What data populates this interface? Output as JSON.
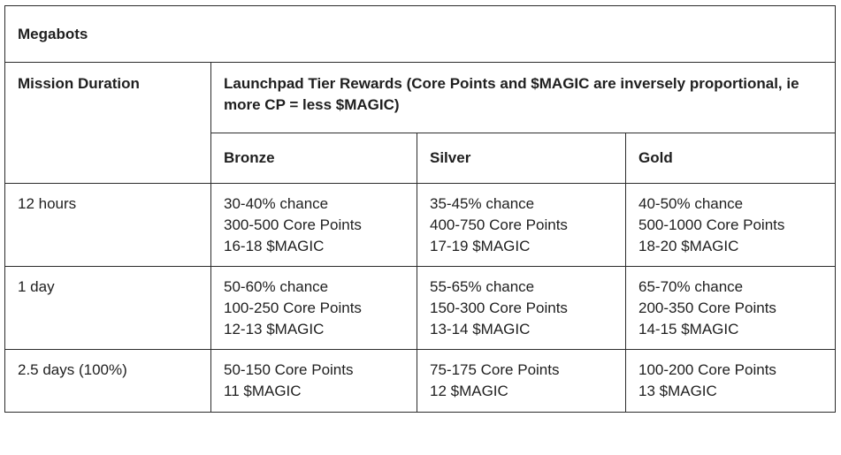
{
  "table": {
    "title": "Megabots",
    "headers": {
      "duration": "Mission Duration",
      "rewards": "Launchpad Tier Rewards (Core Points and $MAGIC are inversely proportional, ie more CP = less $MAGIC)",
      "tiers": [
        "Bronze",
        "Silver",
        "Gold"
      ]
    },
    "rows": [
      {
        "duration": "12 hours",
        "cells": [
          [
            "30-40% chance",
            "300-500 Core Points",
            "16-18 $MAGIC"
          ],
          [
            "35-45% chance",
            "400-750 Core Points",
            "17-19 $MAGIC"
          ],
          [
            "40-50% chance",
            "500-1000 Core Points",
            "18-20 $MAGIC"
          ]
        ]
      },
      {
        "duration": "1 day",
        "cells": [
          [
            "50-60% chance",
            "100-250 Core Points",
            "12-13 $MAGIC"
          ],
          [
            "55-65% chance",
            "150-300 Core Points",
            "13-14 $MAGIC"
          ],
          [
            "65-70% chance",
            "200-350 Core Points",
            "14-15 $MAGIC"
          ]
        ]
      },
      {
        "duration": "2.5 days (100%)",
        "cells": [
          [
            "50-150 Core Points",
            "11 $MAGIC"
          ],
          [
            "75-175 Core Points",
            "12 $MAGIC"
          ],
          [
            "100-200 Core Points",
            "13 $MAGIC"
          ]
        ]
      }
    ]
  }
}
